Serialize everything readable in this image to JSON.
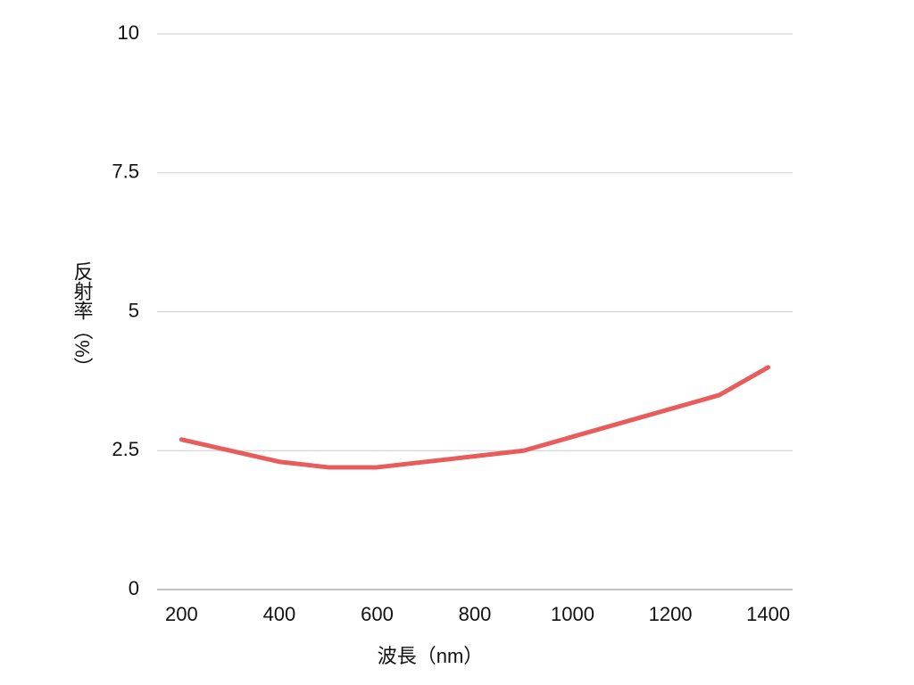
{
  "chart_data": {
    "type": "line",
    "x_label": "波長（nm）",
    "y_label": "反射率（%）",
    "x": [
      200,
      400,
      500,
      600,
      900,
      1300,
      1400
    ],
    "series": [
      {
        "color": "#e85c5c",
        "values": [
          2.7,
          2.3,
          2.2,
          2.2,
          2.5,
          3.5,
          4.0
        ]
      }
    ],
    "xlim": [
      150,
      1450
    ],
    "xticks": [
      200,
      400,
      600,
      800,
      1000,
      1200,
      1400
    ],
    "ylim": [
      0,
      10
    ],
    "yticks": [
      0,
      2.5,
      5,
      7.5,
      10
    ],
    "grid": true
  }
}
